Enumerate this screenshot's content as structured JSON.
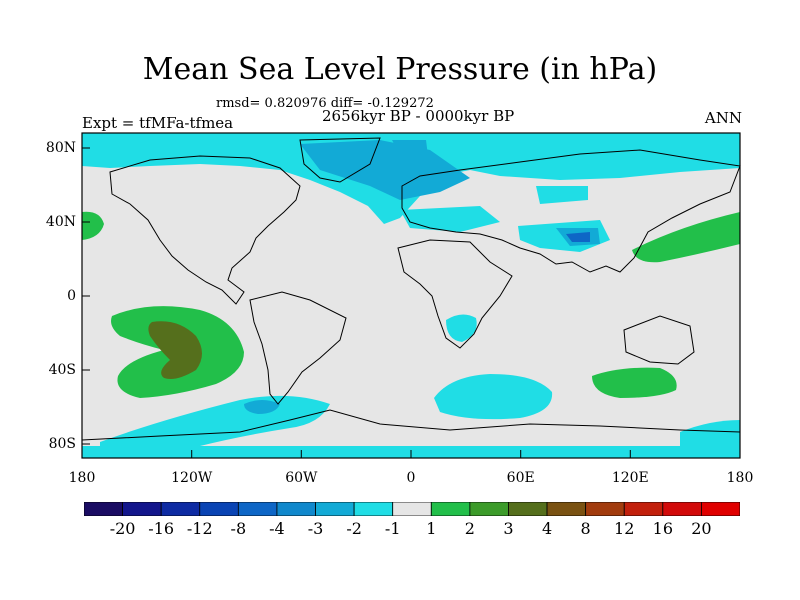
{
  "header": {
    "title": "Mean Sea Level Pressure (in hPa)",
    "stats": "rmsd= 0.820976 diff= -0.129272",
    "period": "2656kyr BP - 0000kyr BP",
    "experiment": "Expt = tfMFa-tfmea",
    "season": "ANN"
  },
  "map": {
    "lat_ticks": [
      "80N",
      "40N",
      "0",
      "40S",
      "80S"
    ],
    "lon_ticks": [
      "180",
      "120W",
      "60W",
      "0",
      "60E",
      "120E",
      "180"
    ],
    "background_color": "#e6e6e6"
  },
  "colorbar": {
    "labels": [
      "-20",
      "-16",
      "-12",
      "-8",
      "-4",
      "-3",
      "-2",
      "-1",
      "1",
      "2",
      "3",
      "4",
      "8",
      "12",
      "16",
      "20"
    ],
    "colors": [
      "#1a0c63",
      "#13168c",
      "#0e2ba3",
      "#0a44b4",
      "#0e66c6",
      "#1088cc",
      "#12aad6",
      "#20dde5",
      "#e6e6e6",
      "#22bf4a",
      "#3c9b2a",
      "#556f1c",
      "#7a5212",
      "#a23c0e",
      "#c2200c",
      "#d20a0a",
      "#e00000"
    ]
  }
}
